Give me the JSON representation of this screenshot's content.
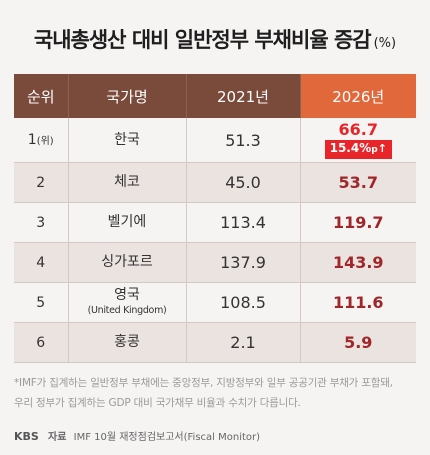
{
  "title": "국내총생산 대비 일반정부 부채비율 증감",
  "unit": "(%)",
  "chart_data": {
    "type": "table",
    "title": "국내총생산 대비 일반정부 부채비율 증감",
    "unit": "(%)",
    "columns": [
      "순위",
      "국가명",
      "2021년",
      "2026년"
    ],
    "rows": [
      {
        "rank": "1",
        "rank_sub": "(위)",
        "country": "한국",
        "country_sub": "",
        "v2021": "51.3",
        "v2026": "66.7",
        "badge": {
          "value": "15.4%",
          "unit": "p",
          "arrow": "↑"
        }
      },
      {
        "rank": "2",
        "rank_sub": "",
        "country": "체코",
        "country_sub": "",
        "v2021": "45.0",
        "v2026": "53.7"
      },
      {
        "rank": "3",
        "rank_sub": "",
        "country": "벨기에",
        "country_sub": "",
        "v2021": "113.4",
        "v2026": "119.7"
      },
      {
        "rank": "4",
        "rank_sub": "",
        "country": "싱가포르",
        "country_sub": "",
        "v2021": "137.9",
        "v2026": "143.9"
      },
      {
        "rank": "5",
        "rank_sub": "",
        "country": "영국",
        "country_sub": "(United Kingdom)",
        "v2021": "108.5",
        "v2026": "111.6"
      },
      {
        "rank": "6",
        "rank_sub": "",
        "country": "홍콩",
        "country_sub": "",
        "v2021": "2.1",
        "v2026": "5.9"
      }
    ],
    "header_colors": {
      "default": "#7a4a3a",
      "highlight": "#e0683a"
    },
    "value_colors": {
      "highlight": "#e8262a",
      "default": "#a0262a"
    }
  },
  "notes": [
    "*IMF가 집계하는 일반정부 부채에는 중앙정부, 지방정부와 일부 공공기관 부채가 포함돼,",
    "우리 정부가 집계하는 GDP 대비 국가채무 비율과 수치가 다릅니다."
  ],
  "footer": {
    "logo": "KBS",
    "source_label": "자료",
    "source": "IMF 10월 재정점검보고서(Fiscal Monitor)"
  }
}
